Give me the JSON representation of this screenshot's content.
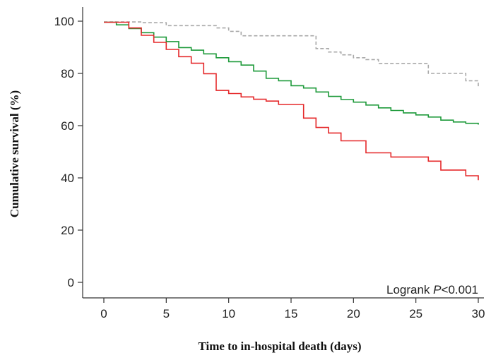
{
  "chart_data": {
    "type": "line",
    "step": true,
    "xlabel": "Time to in-hospital death (days)",
    "ylabel": "Cumulative survival (%)",
    "xlim": [
      0,
      30
    ],
    "ylim": [
      0,
      100
    ],
    "xticks": [
      0,
      5,
      10,
      15,
      20,
      25,
      30
    ],
    "yticks": [
      0,
      20,
      40,
      60,
      80,
      100
    ],
    "grid": false,
    "legend": "none",
    "annotation": {
      "prefix": "Logrank ",
      "stat": "P",
      "value": "<0.001"
    },
    "series": [
      {
        "color": "#a8a8a8",
        "dashed": true,
        "x": [
          0,
          3,
          5,
          9,
          10,
          11,
          17,
          18,
          19,
          20,
          21,
          22,
          26,
          29,
          30
        ],
        "y": [
          99.7,
          99.4,
          98.3,
          97.4,
          96.1,
          94.4,
          89.5,
          88.2,
          87.1,
          86.0,
          85.3,
          83.8,
          80.0,
          77.2,
          74.5
        ]
      },
      {
        "color": "#1d9a3a",
        "dashed": false,
        "x": [
          0,
          1,
          2,
          3,
          4,
          5,
          6,
          7,
          8,
          9,
          10,
          11,
          12,
          13,
          14,
          15,
          16,
          17,
          18,
          19,
          20,
          21,
          22,
          23,
          24,
          25,
          26,
          27,
          28,
          29,
          30
        ],
        "y": [
          99.6,
          98.6,
          97.2,
          95.6,
          93.9,
          92.2,
          89.9,
          88.9,
          87.5,
          86.0,
          84.5,
          83.2,
          80.9,
          78.1,
          77.2,
          75.3,
          74.4,
          72.9,
          71.2,
          70.0,
          69.0,
          67.9,
          66.8,
          65.8,
          64.9,
          64.1,
          63.3,
          62.1,
          61.4,
          60.9,
          60.4
        ]
      },
      {
        "color": "#e5282a",
        "dashed": false,
        "x": [
          0,
          2,
          3,
          4,
          5,
          6,
          7,
          8,
          9,
          10,
          11,
          12,
          13,
          14,
          16,
          17,
          18,
          19,
          21,
          23,
          26,
          27,
          29,
          30
        ],
        "y": [
          99.6,
          97.4,
          94.6,
          91.9,
          89.2,
          86.4,
          83.9,
          79.9,
          73.5,
          72.3,
          71.0,
          70.1,
          69.4,
          68.1,
          62.9,
          59.3,
          57.2,
          54.2,
          49.6,
          48.0,
          46.4,
          43.0,
          40.8,
          39.1
        ]
      }
    ]
  }
}
